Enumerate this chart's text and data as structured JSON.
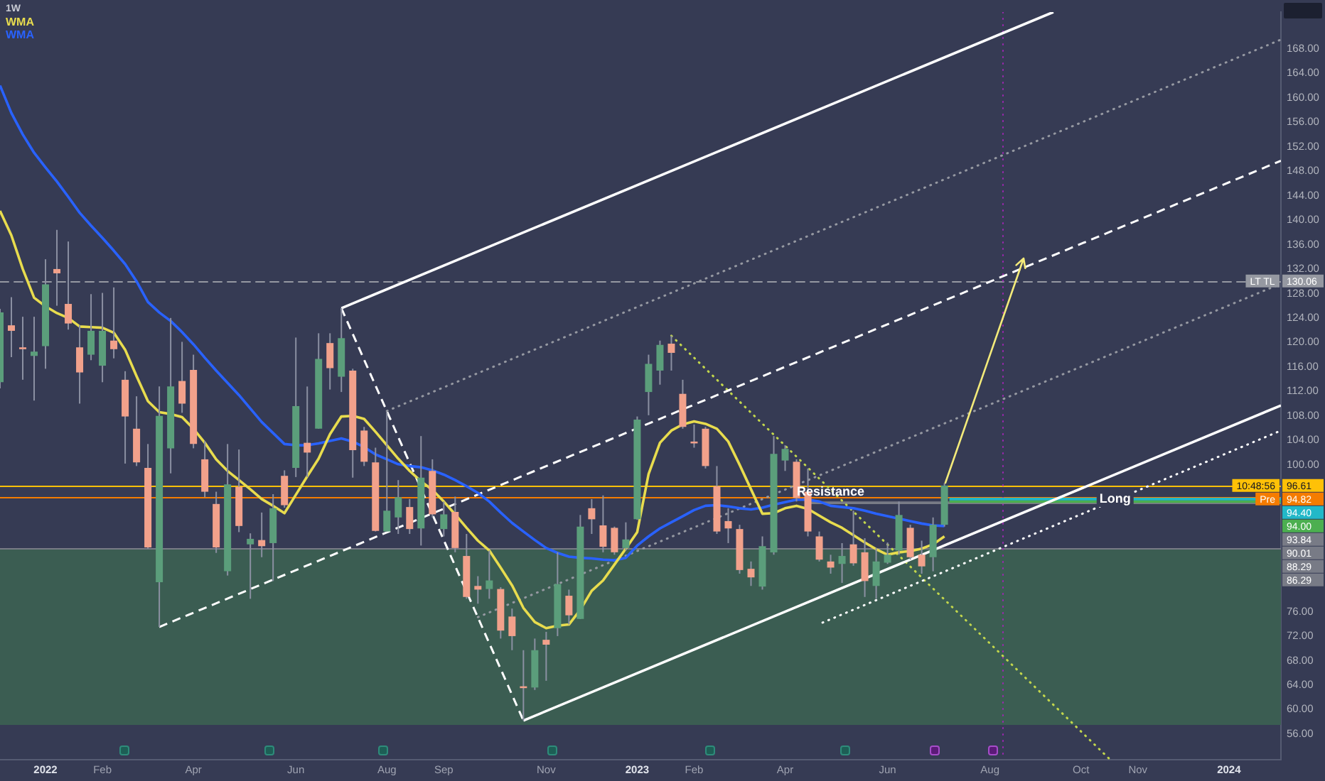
{
  "chart_data": {
    "type": "candlestick",
    "title": "1W",
    "legend": "top left",
    "xlim": [
      "2021-12-06",
      "2024-02-02"
    ],
    "xticks": [
      {
        "value": "2022-01-03",
        "label": "2022"
      },
      {
        "value": "2022-02-07",
        "label": "Feb"
      },
      {
        "value": "2022-04-04",
        "label": "Apr"
      },
      {
        "value": "2022-06-06",
        "label": "Jun"
      },
      {
        "value": "2022-08-01",
        "label": "Aug"
      },
      {
        "value": "2022-09-05",
        "label": "Sep"
      },
      {
        "value": "2022-11-07",
        "label": "Nov"
      },
      {
        "value": "2023-01-02",
        "label": "2023"
      },
      {
        "value": "2023-02-06",
        "label": "Feb"
      },
      {
        "value": "2023-04-03",
        "label": "Apr"
      },
      {
        "value": "2023-06-05",
        "label": "Jun"
      },
      {
        "value": "2023-08-07",
        "label": "Aug"
      },
      {
        "value": "2023-10-02",
        "label": "Oct"
      },
      {
        "value": "2023-11-06",
        "label": "Nov"
      },
      {
        "value": "2024-01-01",
        "label": "2024"
      }
    ],
    "ylim": [
      51.8,
      174.0
    ],
    "yticks": [
      {
        "value": 56,
        "label": "56.00"
      },
      {
        "value": 60,
        "label": "60.00"
      },
      {
        "value": 64,
        "label": "64.00"
      },
      {
        "value": 68,
        "label": "68.00"
      },
      {
        "value": 72,
        "label": "72.00"
      },
      {
        "value": 76,
        "label": "76.00"
      },
      {
        "value": 100,
        "label": "100.00"
      },
      {
        "value": 104,
        "label": "104.00"
      },
      {
        "value": 108,
        "label": "108.00"
      },
      {
        "value": 112,
        "label": "112.00"
      },
      {
        "value": 116,
        "label": "116.00"
      },
      {
        "value": 120,
        "label": "120.00"
      },
      {
        "value": 124,
        "label": "124.00"
      },
      {
        "value": 128,
        "label": "128.00"
      },
      {
        "value": 132,
        "label": "132.00"
      },
      {
        "value": 136,
        "label": "136.00"
      },
      {
        "value": 140,
        "label": "140.00"
      },
      {
        "value": 144,
        "label": "144.00"
      },
      {
        "value": 148,
        "label": "148.00"
      },
      {
        "value": 152,
        "label": "152.00"
      },
      {
        "value": 156,
        "label": "156.00"
      },
      {
        "value": 160,
        "label": "160.00"
      },
      {
        "value": 164,
        "label": "164.00"
      },
      {
        "value": 168,
        "label": "168.00"
      }
    ],
    "x": [
      "2021-12-06",
      "2021-12-13",
      "2021-12-20",
      "2021-12-27",
      "2022-01-03",
      "2022-01-10",
      "2022-01-17",
      "2022-01-24",
      "2022-01-31",
      "2022-02-07",
      "2022-02-14",
      "2022-02-21",
      "2022-02-28",
      "2022-03-07",
      "2022-03-14",
      "2022-03-21",
      "2022-03-28",
      "2022-04-04",
      "2022-04-11",
      "2022-04-18",
      "2022-04-25",
      "2022-05-02",
      "2022-05-09",
      "2022-05-16",
      "2022-05-23",
      "2022-05-30",
      "2022-06-06",
      "2022-06-13",
      "2022-06-20",
      "2022-06-27",
      "2022-07-04",
      "2022-07-11",
      "2022-07-18",
      "2022-07-25",
      "2022-08-01",
      "2022-08-08",
      "2022-08-15",
      "2022-08-22",
      "2022-08-29",
      "2022-09-05",
      "2022-09-12",
      "2022-09-19",
      "2022-09-26",
      "2022-10-03",
      "2022-10-10",
      "2022-10-17",
      "2022-10-24",
      "2022-10-31",
      "2022-11-07",
      "2022-11-14",
      "2022-11-21",
      "2022-11-28",
      "2022-12-05",
      "2022-12-12",
      "2022-12-19",
      "2022-12-26",
      "2023-01-02",
      "2023-01-09",
      "2023-01-16",
      "2023-01-23",
      "2023-01-30",
      "2023-02-06",
      "2023-02-13",
      "2023-02-20",
      "2023-02-27",
      "2023-03-06",
      "2023-03-13",
      "2023-03-20",
      "2023-03-27",
      "2023-04-03",
      "2023-04-10",
      "2023-04-17",
      "2023-04-24",
      "2023-05-01",
      "2023-05-08",
      "2023-05-15",
      "2023-05-22",
      "2023-05-29",
      "2023-06-05",
      "2023-06-12",
      "2023-06-19",
      "2023-06-26",
      "2023-07-03",
      "2023-07-10"
    ],
    "ohlc": [
      [
        113.5,
        125.5,
        112.5,
        124.9
      ],
      [
        122.8,
        127.4,
        117.6,
        121.9
      ],
      [
        119.2,
        124.2,
        113.9,
        118.9
      ],
      [
        117.8,
        124.2,
        110.5,
        118.5
      ],
      [
        119.4,
        133.6,
        115.7,
        129.5
      ],
      [
        132.0,
        138.4,
        126.0,
        131.3
      ],
      [
        126.3,
        136.5,
        122.1,
        123.1
      ],
      [
        119.2,
        122.8,
        110.0,
        115.1
      ],
      [
        118.0,
        127.9,
        117.1,
        121.9
      ],
      [
        116.2,
        128.1,
        113.5,
        121.9
      ],
      [
        120.3,
        129.0,
        117.4,
        118.9
      ],
      [
        113.9,
        115.3,
        100.2,
        107.9
      ],
      [
        105.9,
        111.2,
        99.8,
        100.4
      ],
      [
        99.5,
        103.4,
        86.3,
        86.5
      ],
      [
        80.8,
        112.8,
        73.5,
        108.0
      ],
      [
        102.7,
        124.0,
        98.6,
        112.8
      ],
      [
        113.7,
        120.1,
        108.5,
        110.0
      ],
      [
        115.5,
        118.0,
        102.7,
        103.4
      ],
      [
        100.9,
        103.9,
        94.7,
        95.6
      ],
      [
        93.6,
        95.6,
        85.6,
        86.5
      ],
      [
        82.6,
        103.4,
        81.9,
        96.8
      ],
      [
        96.4,
        102.5,
        89.0,
        90.0
      ],
      [
        87.0,
        88.8,
        78.1,
        87.9
      ],
      [
        87.7,
        92.2,
        84.9,
        86.7
      ],
      [
        87.2,
        95.2,
        81.0,
        92.9
      ],
      [
        98.2,
        99.1,
        93.0,
        93.4
      ],
      [
        99.5,
        120.8,
        98.0,
        109.6
      ],
      [
        103.6,
        112.8,
        98.0,
        102.0
      ],
      [
        105.9,
        121.5,
        105.9,
        117.3
      ],
      [
        119.9,
        121.5,
        112.3,
        115.8
      ],
      [
        114.4,
        125.6,
        111.9,
        120.7
      ],
      [
        115.4,
        115.7,
        97.9,
        102.4
      ],
      [
        105.6,
        106.2,
        99.8,
        100.5
      ],
      [
        100.4,
        102.8,
        89.1,
        89.2
      ],
      [
        89.1,
        108.5,
        89.1,
        92.5
      ],
      [
        91.4,
        97.5,
        88.7,
        94.7
      ],
      [
        93.1,
        94.4,
        88.7,
        89.5
      ],
      [
        89.6,
        104.7,
        86.8,
        97.9
      ],
      [
        99.0,
        100.9,
        91.4,
        91.9
      ],
      [
        89.5,
        94.0,
        88.3,
        91.9
      ],
      [
        92.3,
        94.8,
        85.7,
        86.4
      ],
      [
        85.1,
        88.7,
        78.1,
        78.4
      ],
      [
        80.2,
        81.8,
        77.3,
        79.6
      ],
      [
        79.7,
        86.0,
        78.1,
        81.1
      ],
      [
        79.7,
        80.0,
        71.6,
        72.9
      ],
      [
        75.2,
        76.5,
        69.7,
        72.0
      ],
      [
        63.8,
        69.7,
        58.2,
        63.5
      ],
      [
        63.6,
        71.6,
        63.2,
        69.7
      ],
      [
        71.4,
        72.7,
        64.7,
        70.6
      ],
      [
        73.3,
        85.7,
        72.0,
        80.5
      ],
      [
        78.6,
        79.6,
        73.9,
        75.4
      ],
      [
        74.8,
        91.8,
        74.8,
        89.9
      ],
      [
        92.9,
        94.4,
        88.7,
        91.1
      ],
      [
        90.1,
        95.0,
        85.7,
        86.6
      ],
      [
        89.7,
        89.9,
        85.3,
        85.7
      ],
      [
        86.4,
        90.6,
        86.0,
        87.8
      ],
      [
        91.1,
        107.9,
        91.0,
        107.4
      ],
      [
        111.9,
        118.0,
        108.1,
        116.5
      ],
      [
        115.4,
        120.3,
        113.1,
        119.6
      ],
      [
        119.8,
        121.1,
        115.4,
        118.3
      ],
      [
        111.6,
        113.9,
        105.9,
        106.2
      ],
      [
        103.8,
        106.6,
        102.8,
        103.5
      ],
      [
        105.9,
        106.2,
        99.4,
        99.8
      ],
      [
        96.5,
        99.8,
        88.7,
        89.1
      ],
      [
        90.8,
        92.9,
        87.2,
        89.6
      ],
      [
        89.5,
        90.2,
        82.2,
        82.8
      ],
      [
        83.0,
        84.2,
        80.2,
        81.6
      ],
      [
        80.1,
        88.3,
        79.6,
        86.7
      ],
      [
        85.7,
        104.7,
        85.3,
        101.8
      ],
      [
        100.7,
        103.2,
        99.0,
        102.6
      ],
      [
        100.5,
        100.9,
        94.0,
        94.6
      ],
      [
        95.6,
        99.4,
        88.3,
        89.1
      ],
      [
        88.3,
        89.1,
        84.2,
        84.5
      ],
      [
        84.2,
        85.3,
        82.2,
        83.2
      ],
      [
        83.8,
        87.2,
        80.7,
        85.1
      ],
      [
        87.0,
        92.5,
        83.5,
        83.9
      ],
      [
        85.7,
        88.0,
        78.4,
        81.0
      ],
      [
        80.2,
        86.4,
        78.1,
        84.2
      ],
      [
        84.0,
        87.3,
        83.8,
        85.3
      ],
      [
        86.0,
        94.0,
        85.3,
        91.8
      ],
      [
        89.7,
        90.2,
        84.5,
        84.9
      ],
      [
        85.3,
        87.6,
        82.2,
        83.4
      ],
      [
        84.9,
        91.4,
        82.6,
        90.2
      ],
      [
        90.2,
        97.0,
        89.9,
        96.61
      ]
    ],
    "colors": [
      "#5b9e7b",
      "#f2a18b",
      "#f2a18b",
      "#5b9e7b",
      "#5b9e7b",
      "#f2a18b",
      "#f2a18b",
      "#f2a18b",
      "#5b9e7b",
      "#5b9e7b",
      "#f2a18b",
      "#f2a18b",
      "#f2a18b",
      "#f2a18b",
      "#5b9e7b",
      "#5b9e7b",
      "#f2a18b",
      "#f2a18b",
      "#f2a18b",
      "#f2a18b",
      "#5b9e7b",
      "#f2a18b",
      "#5b9e7b",
      "#f2a18b",
      "#5b9e7b",
      "#f2a18b",
      "#5b9e7b",
      "#f2a18b",
      "#5b9e7b",
      "#f2a18b",
      "#5b9e7b",
      "#f2a18b",
      "#f2a18b",
      "#f2a18b",
      "#5b9e7b",
      "#5b9e7b",
      "#f2a18b",
      "#5b9e7b",
      "#f2a18b",
      "#5b9e7b",
      "#f2a18b",
      "#f2a18b",
      "#f2a18b",
      "#5b9e7b",
      "#f2a18b",
      "#f2a18b",
      "#f2a18b",
      "#5b9e7b",
      "#f2a18b",
      "#5b9e7b",
      "#f2a18b",
      "#5b9e7b",
      "#f2a18b",
      "#f2a18b",
      "#f2a18b",
      "#5b9e7b",
      "#5b9e7b",
      "#5b9e7b",
      "#5b9e7b",
      "#f2a18b",
      "#f2a18b",
      "#f2a18b",
      "#f2a18b",
      "#f2a18b",
      "#f2a18b",
      "#f2a18b",
      "#f2a18b",
      "#5b9e7b",
      "#5b9e7b",
      "#5b9e7b",
      "#f2a18b",
      "#f2a18b",
      "#f2a18b",
      "#f2a18b",
      "#5b9e7b",
      "#f2a18b",
      "#f2a18b",
      "#5b9e7b",
      "#5b9e7b",
      "#5b9e7b",
      "#f2a18b",
      "#f2a18b",
      "#5b9e7b",
      "#5b9e7b"
    ],
    "series": [
      {
        "name": "WMA",
        "type": "line",
        "color": "#e8dc4e",
        "line_style": "solid",
        "values": [
          141.5,
          137.5,
          132.0,
          127.3,
          125.9,
          124.8,
          124.0,
          122.6,
          122.5,
          122.4,
          121.6,
          118.8,
          114.5,
          110.4,
          108.6,
          108.3,
          107.8,
          105.9,
          103.6,
          100.9,
          99.0,
          97.5,
          96.0,
          94.4,
          93.3,
          92.1,
          95.1,
          98.1,
          101.0,
          105.0,
          107.9,
          108.0,
          107.5,
          105.4,
          103.2,
          101.0,
          99.0,
          97.3,
          95.9,
          94.0,
          91.9,
          89.7,
          87.6,
          86.0,
          83.2,
          80.3,
          76.6,
          74.3,
          73.3,
          73.7,
          73.9,
          76.3,
          79.4,
          81.1,
          83.7,
          86.3,
          89.0,
          98.5,
          103.6,
          105.6,
          106.6,
          107.1,
          106.7,
          105.9,
          103.8,
          100.0,
          96.0,
          92.0,
          92.1,
          92.9,
          93.3,
          92.8,
          91.7,
          90.6,
          89.7,
          88.5,
          87.3,
          86.2,
          85.3,
          85.7,
          85.9,
          86.3,
          87.0,
          88.3
        ]
      },
      {
        "name": "WMA",
        "type": "line",
        "color": "#2962ff",
        "line_style": "solid",
        "values": [
          162.0,
          157.5,
          154.0,
          151.0,
          148.6,
          146.3,
          143.8,
          141.2,
          139.1,
          137.1,
          135.0,
          132.8,
          130.0,
          126.6,
          124.9,
          123.5,
          121.7,
          119.7,
          117.5,
          115.4,
          113.4,
          111.4,
          109.2,
          107.0,
          105.2,
          103.4,
          103.2,
          103.2,
          103.5,
          103.9,
          104.3,
          103.8,
          102.9,
          101.7,
          100.9,
          100.1,
          99.8,
          99.6,
          99.1,
          98.4,
          97.5,
          96.5,
          95.4,
          94.0,
          92.2,
          90.5,
          89.1,
          87.7,
          86.4,
          85.6,
          85.0,
          84.8,
          84.7,
          84.5,
          84.4,
          84.8,
          86.8,
          88.3,
          89.6,
          90.6,
          91.6,
          92.6,
          93.3,
          93.4,
          93.2,
          92.9,
          92.7,
          93.0,
          93.5,
          93.9,
          94.3,
          94.3,
          94.0,
          93.3,
          93.1,
          92.9,
          92.5,
          92.0,
          91.6,
          91.2,
          90.8,
          90.4,
          90.1,
          90.0
        ]
      },
      {
        "type": "line",
        "color": "#ffffff",
        "line_style": "solid",
        "x": [
          "2022-07-04",
          "2023-09-15"
        ],
        "values": [
          125.6,
          174.0
        ]
      },
      {
        "type": "line",
        "color": "#ffffff",
        "line_style": "solid",
        "x": [
          "2022-10-24",
          "2024-02-02"
        ],
        "values": [
          58.2,
          109.7
        ]
      },
      {
        "type": "line",
        "color": "#ffffff",
        "line_style": "dashed",
        "x": [
          "2022-03-14",
          "2024-02-02"
        ],
        "values": [
          73.5,
          149.7
        ]
      },
      {
        "type": "line",
        "color": "#ffffff",
        "line_style": "dashed",
        "x": [
          "2022-07-04",
          "2022-10-24"
        ],
        "values": [
          125.6,
          58.2
        ]
      },
      {
        "type": "line",
        "color": "#9598a1",
        "line_style": "dotted",
        "x": [
          "2022-08-01",
          "2024-02-02"
        ],
        "values": [
          108.8,
          169.5
        ]
      },
      {
        "type": "line",
        "color": "#9598a1",
        "line_style": "dotted",
        "x": [
          "2022-09-26",
          "2024-02-02"
        ],
        "values": [
          75.1,
          129.6
        ]
      },
      {
        "type": "line",
        "color": "#ffffff",
        "line_style": "dotted",
        "x": [
          "2023-04-26",
          "2024-02-02"
        ],
        "values": [
          74.2,
          105.6
        ]
      },
      {
        "type": "line",
        "color": "#c2d64c",
        "line_style": "dotted",
        "x": [
          "2023-01-23",
          "2023-10-20"
        ],
        "values": [
          121.1,
          51.8
        ]
      },
      {
        "type": "line",
        "color": "#22b8c8",
        "line_style": "solid",
        "x": [
          "2023-07-13",
          "2024-02-02"
        ],
        "values": [
          94.4,
          94.4
        ],
        "value_labels": [
          null,
          "94.40"
        ]
      },
      {
        "type": "line",
        "color": "#4caf50",
        "line_style": "solid",
        "x": [
          "2023-07-13",
          "2024-02-02"
        ],
        "values": [
          94.0,
          94.0
        ],
        "value_labels": [
          null,
          "94.00"
        ]
      },
      {
        "type": "line",
        "color": "#787b86",
        "line_style": "solid",
        "x": [
          "2023-04-17",
          "2024-02-02"
        ],
        "values": [
          93.8,
          93.8
        ]
      }
    ],
    "ref_lines": [
      {
        "axis": "y",
        "value": 130.06,
        "label": "130.06",
        "color": "#9598a1",
        "line_style": "dashed"
      },
      {
        "axis": "y",
        "value": 96.61,
        "label": "96.61",
        "color": "#ffc107",
        "line_style": "solid"
      },
      {
        "axis": "y",
        "value": 94.82,
        "label": "94.82",
        "color": "#f57c00",
        "line_style": "solid"
      },
      {
        "axis": "y",
        "value": 86.29,
        "label": "86.29",
        "color": "#787b86",
        "line_style": "solid"
      },
      {
        "axis": "x",
        "value": "2023-08-15",
        "color": "#9c27b0",
        "line_style": "dotted"
      }
    ],
    "bands": [
      {
        "axis": "y",
        "from": 57.5,
        "to": 86.29,
        "color": "#3b5d52"
      }
    ],
    "annotations": [
      {
        "text": "Resistance",
        "x": "2023-05-01",
        "y": 95.6
      },
      {
        "text": "Long",
        "x": "2023-10-23",
        "y": 94.4
      },
      {
        "text": "LT TL",
        "y": 130.06
      },
      {
        "text": "10:48:56",
        "y": 96.61
      },
      {
        "text": "Pre",
        "y": 94.82
      },
      "93.84",
      "90.01",
      "88.29"
    ]
  }
}
